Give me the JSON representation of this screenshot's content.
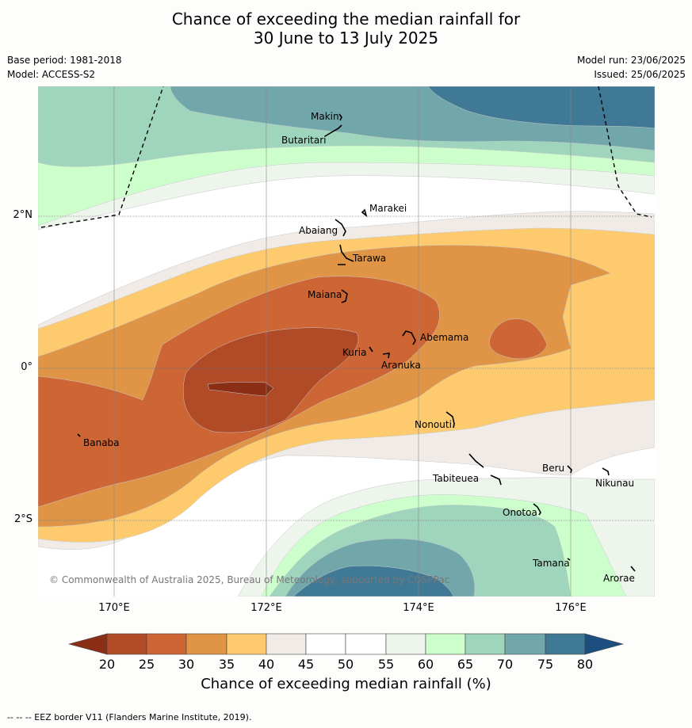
{
  "title": {
    "line1": "Chance of exceeding the median rainfall for",
    "line2": "30 June to 13 July 2025"
  },
  "meta": {
    "base_period": "Base period: 1981-2018",
    "model": "Model: ACCESS-S2",
    "model_run": "Model run: 23/06/2025",
    "issued": "Issued: 25/06/2025"
  },
  "map": {
    "lon_labels": [
      "170°E",
      "172°E",
      "174°E",
      "176°E"
    ],
    "lat_labels": [
      "2°N",
      "0°",
      "2°S"
    ],
    "places": [
      "Makin",
      "Butaritari",
      "Marakei",
      "Abaiang",
      "Tarawa",
      "Maiana",
      "Abemama",
      "Kuria",
      "Aranuka",
      "Nonouti",
      "Banaba",
      "Tabiteuea",
      "Beru",
      "Nikunau",
      "Onotoa",
      "Tamana",
      "Arorae"
    ],
    "copyright": "© Commonwealth of Australia 2025, Bureau of Meteorology, supported by COSPPac",
    "eez_style": "dashed"
  },
  "colorbar": {
    "ticks": [
      "20",
      "25",
      "30",
      "35",
      "40",
      "45",
      "50",
      "55",
      "60",
      "65",
      "70",
      "75",
      "80"
    ],
    "colors": [
      "#8a2e16",
      "#b14a27",
      "#cd6534",
      "#e09546",
      "#fdcb6e",
      "#f0ebe6",
      "#ffffff",
      "#ffffff",
      "#edf5ec",
      "#ccffcc",
      "#9fd4bd",
      "#71a7aa",
      "#407996",
      "#1c4f80"
    ],
    "title": "Chance of exceeding median rainfall (%)"
  },
  "footer": "--  --  -- EEZ border V11 (Flanders Marine Institute, 2019)."
}
